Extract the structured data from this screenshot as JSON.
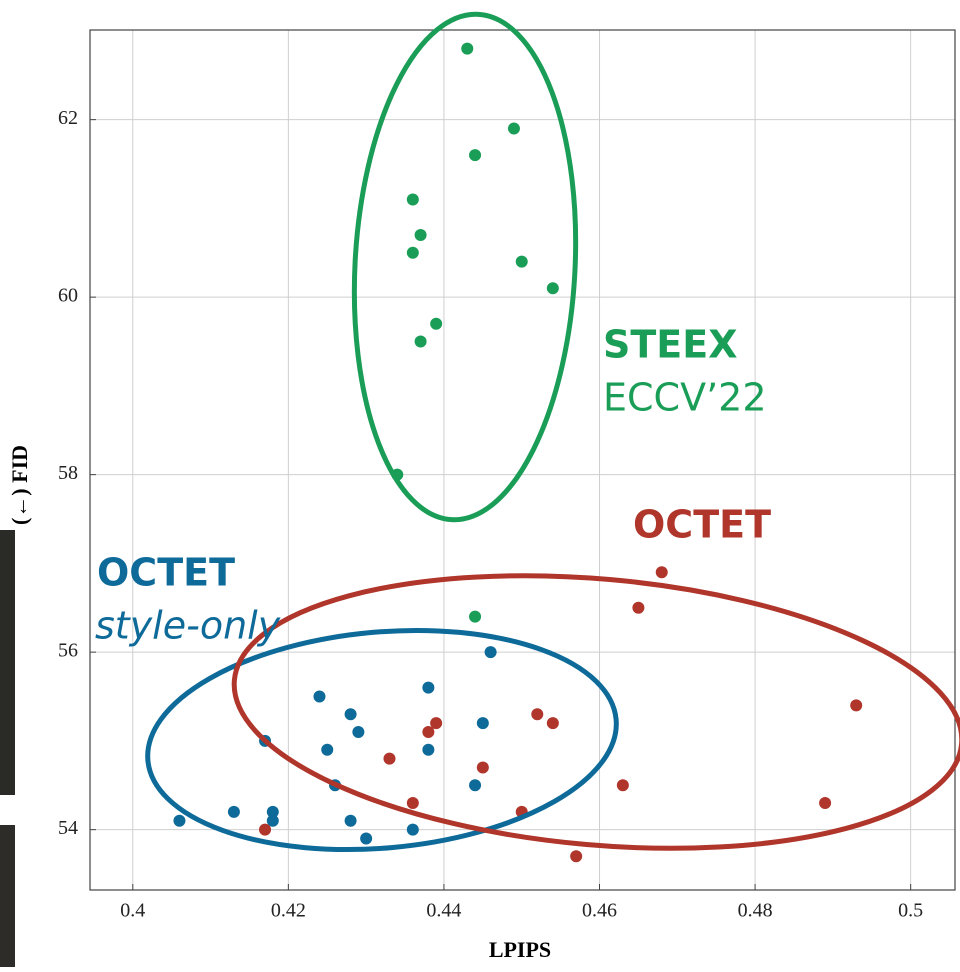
{
  "chart_data": {
    "type": "scatter",
    "x_label": "LPIPS",
    "y_label": "(←) FID",
    "xlim": [
      0.3945,
      0.5057
    ],
    "ylim": [
      53.32,
      63.01
    ],
    "xticks": [
      0.4,
      0.42,
      0.44,
      0.46,
      0.48,
      0.5
    ],
    "yticks": [
      54,
      56,
      58,
      60,
      62
    ],
    "grid": true,
    "annotations": [
      "STEEX",
      "ECCV’22",
      "OCTET",
      "OCTET",
      "style-only"
    ],
    "series": [
      {
        "color": "#1a9e57",
        "x": [
          0.443,
          0.449,
          0.444,
          0.436,
          0.437,
          0.436,
          0.45,
          0.454,
          0.439,
          0.437,
          0.434,
          0.444
        ],
        "y": [
          62.8,
          61.9,
          61.6,
          61.1,
          60.7,
          60.5,
          60.4,
          60.1,
          59.7,
          59.5,
          58.0,
          56.4
        ]
      },
      {
        "color": "#0d6a99",
        "x": [
          0.446,
          0.438,
          0.424,
          0.428,
          0.445,
          0.429,
          0.417,
          0.425,
          0.438,
          0.426,
          0.444,
          0.418,
          0.413,
          0.406,
          0.428,
          0.418,
          0.436,
          0.43
        ],
        "y": [
          56.0,
          55.6,
          55.5,
          55.3,
          55.2,
          55.1,
          55.0,
          54.9,
          54.9,
          54.5,
          54.5,
          54.2,
          54.2,
          54.1,
          54.1,
          54.1,
          54.0,
          53.9
        ]
      },
      {
        "color": "#b0352a",
        "x": [
          0.468,
          0.465,
          0.493,
          0.452,
          0.454,
          0.439,
          0.438,
          0.433,
          0.445,
          0.463,
          0.436,
          0.489,
          0.45,
          0.417,
          0.457
        ],
        "y": [
          56.9,
          56.5,
          55.4,
          55.3,
          55.2,
          55.2,
          55.1,
          54.8,
          54.7,
          54.5,
          54.3,
          54.3,
          54.2,
          54.0,
          53.7
        ]
      }
    ]
  }
}
